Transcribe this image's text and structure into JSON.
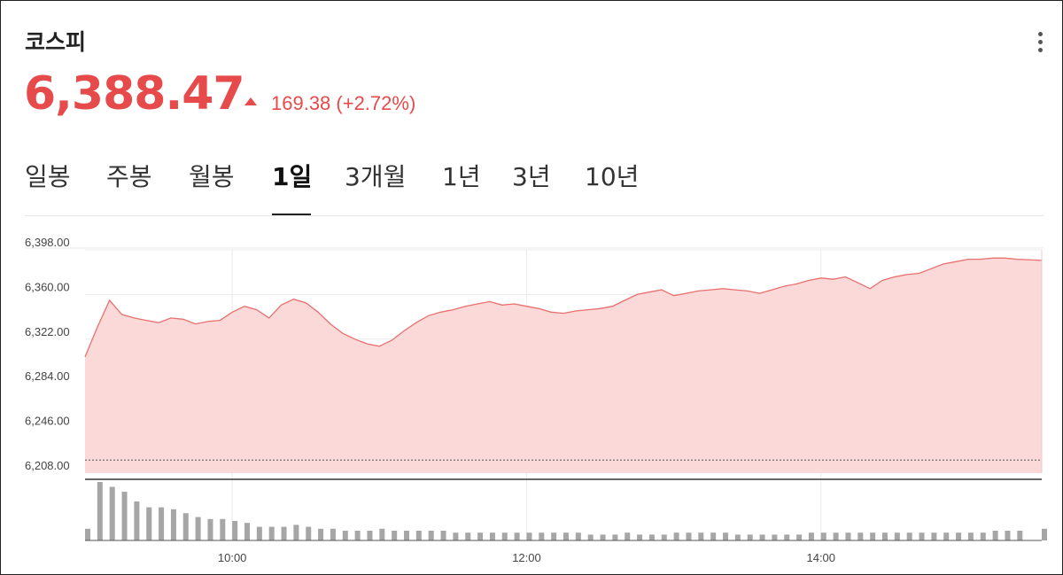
{
  "header": {
    "title": "코스피",
    "price": "6,388.47",
    "change": "169.38 (+2.72%)"
  },
  "tabs": [
    {
      "label": "일봉",
      "active": false
    },
    {
      "label": "주봉",
      "active": false
    },
    {
      "label": "월봉",
      "active": false
    },
    {
      "label": "1일",
      "active": true
    },
    {
      "label": "3개월",
      "active": false
    },
    {
      "label": "1년",
      "active": false
    },
    {
      "label": "3년",
      "active": false
    },
    {
      "label": "10년",
      "active": false
    }
  ],
  "colors": {
    "up": "#e64a4a",
    "line": "#e8706e",
    "fill": "#fbd9d9",
    "volume": "#a6a6a6"
  },
  "icons": {
    "more": "more-vertical-icon",
    "trend": "triangle-up-icon"
  },
  "chart_data": {
    "type": "area",
    "x_ticks": [
      "10:00",
      "12:00",
      "14:00"
    ],
    "y_ticks": [
      "6,398.00",
      "6,360.00",
      "6,322.00",
      "6,284.00",
      "6,246.00",
      "6,208.00"
    ],
    "ylim": [
      6208,
      6398
    ],
    "xlim": [
      "09:00",
      "15:30"
    ],
    "previous_close": 6219.09,
    "grid": true,
    "series": [
      {
        "x": [
          "09:00",
          "09:05",
          "09:10",
          "09:15",
          "09:20",
          "09:25",
          "09:30",
          "09:35",
          "09:40",
          "09:45",
          "09:50",
          "09:55",
          "10:00",
          "10:05",
          "10:10",
          "10:15",
          "10:20",
          "10:25",
          "10:30",
          "10:35",
          "10:40",
          "10:45",
          "10:50",
          "10:55",
          "11:00",
          "11:05",
          "11:10",
          "11:15",
          "11:20",
          "11:25",
          "11:30",
          "11:35",
          "11:40",
          "11:45",
          "11:50",
          "11:55",
          "12:00",
          "12:05",
          "12:10",
          "12:15",
          "12:20",
          "12:25",
          "12:30",
          "12:35",
          "12:40",
          "12:45",
          "12:50",
          "12:55",
          "13:00",
          "13:05",
          "13:10",
          "13:15",
          "13:20",
          "13:25",
          "13:30",
          "13:35",
          "13:40",
          "13:45",
          "13:50",
          "13:55",
          "14:00",
          "14:05",
          "14:10",
          "14:15",
          "14:20",
          "14:25",
          "14:30",
          "14:35",
          "14:40",
          "14:45",
          "14:50",
          "14:55",
          "15:00",
          "15:05",
          "15:10",
          "15:15",
          "15:20",
          "15:30"
        ],
        "values": [
          6307,
          6332,
          6355,
          6343,
          6340,
          6338,
          6336,
          6340,
          6339,
          6335,
          6337,
          6338,
          6345,
          6350,
          6347,
          6340,
          6351,
          6356,
          6353,
          6345,
          6335,
          6327,
          6322,
          6318,
          6316,
          6321,
          6329,
          6336,
          6342,
          6345,
          6347,
          6350,
          6352,
          6354,
          6351,
          6352,
          6350,
          6348,
          6345,
          6344,
          6346,
          6347,
          6348,
          6350,
          6355,
          6360,
          6362,
          6364,
          6359,
          6361,
          6363,
          6364,
          6365,
          6364,
          6363,
          6361,
          6364,
          6367,
          6369,
          6372,
          6374,
          6373,
          6375,
          6370,
          6365,
          6372,
          6375,
          6377,
          6378,
          6382,
          6386,
          6388,
          6390,
          6390,
          6391,
          6391,
          6390,
          6389
        ],
        "volume": [
          12,
          60,
          55,
          50,
          40,
          34,
          34,
          32,
          28,
          24,
          22,
          22,
          20,
          18,
          14,
          14,
          14,
          16,
          14,
          12,
          12,
          10,
          10,
          10,
          12,
          10,
          10,
          10,
          10,
          10,
          8,
          8,
          8,
          8,
          8,
          8,
          8,
          8,
          8,
          8,
          8,
          6,
          6,
          6,
          8,
          6,
          6,
          6,
          8,
          8,
          8,
          8,
          8,
          6,
          6,
          6,
          6,
          6,
          6,
          8,
          8,
          8,
          8,
          8,
          8,
          8,
          8,
          8,
          8,
          8,
          8,
          8,
          8,
          8,
          10,
          10,
          10,
          12
        ]
      }
    ]
  }
}
